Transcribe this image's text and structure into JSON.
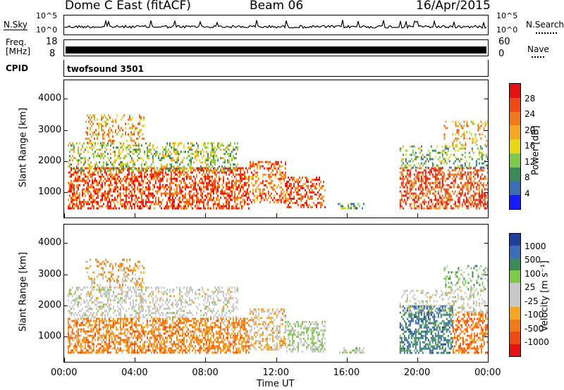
{
  "header": {
    "station": "Dome C East (fitACF)",
    "beam": "Beam 06",
    "date": "16/Apr/2015"
  },
  "strip_panels": {
    "nsky_label": "N.Sky",
    "nsearch_label": "N.Search",
    "noise_ticks": [
      "10^5",
      "10^0"
    ],
    "freq_label_line1": "Freq.",
    "freq_label_line2": "[MHz]",
    "freq_ticks": [
      "18",
      "8"
    ],
    "nave_label": "Nave",
    "nave_ticks": [
      "60",
      "0"
    ],
    "cpid_label": "CPID",
    "cpid_text": "twofsound 3501"
  },
  "colors": {
    "power_scale": [
      "#1a1aff",
      "#3b6db8",
      "#3a8a5a",
      "#7fc94a",
      "#e6d817",
      "#f5a623",
      "#f07a1a",
      "#ef4a14",
      "#e81010"
    ],
    "velocity_scale": [
      "#e81010",
      "#ef4a14",
      "#f07a1a",
      "#f5a623",
      "#c8c8c8",
      "#c8c8c8",
      "#7fc94a",
      "#3a8a5a",
      "#3b6db8",
      "#1f3f9a"
    ],
    "noise_trace": "#000000"
  },
  "chart_data": [
    {
      "type": "heatmap",
      "panel": "power",
      "ylabel": "Slant Range [km]",
      "xlabel": "",
      "x_ticks": [
        "00:00",
        "04:00",
        "08:00",
        "12:00",
        "16:00",
        "20:00",
        "00:00"
      ],
      "y_ticks": [
        "1000",
        "2000",
        "3000",
        "4000"
      ],
      "ylim": [
        180,
        4600
      ],
      "xlim_hours": [
        0,
        24
      ],
      "colorbar": {
        "label": "Power [dB]",
        "ticks": [
          "28",
          "24",
          "20",
          "16",
          "12",
          "8",
          "4"
        ],
        "range": [
          0,
          32
        ]
      },
      "echo_regions": [
        {
          "t0": 0.2,
          "t1": 10.5,
          "r0": 500,
          "r1": 1800,
          "value": 26,
          "fill": 0.55
        },
        {
          "t0": 0.2,
          "t1": 9.8,
          "r0": 1700,
          "r1": 2600,
          "value": 14,
          "fill": 0.35
        },
        {
          "t0": 1.2,
          "t1": 4.5,
          "r0": 2600,
          "r1": 3500,
          "value": 20,
          "fill": 0.3
        },
        {
          "t0": 10.5,
          "t1": 12.5,
          "r0": 700,
          "r1": 2000,
          "value": 24,
          "fill": 0.45
        },
        {
          "t0": 12.5,
          "t1": 14.8,
          "r0": 500,
          "r1": 1500,
          "value": 26,
          "fill": 0.45
        },
        {
          "t0": 15.5,
          "t1": 17.0,
          "r0": 450,
          "r1": 650,
          "value": 10,
          "fill": 0.4
        },
        {
          "t0": 19.0,
          "t1": 24.0,
          "r0": 500,
          "r1": 1800,
          "value": 26,
          "fill": 0.5
        },
        {
          "t0": 19.0,
          "t1": 24.0,
          "r0": 1800,
          "r1": 2500,
          "value": 12,
          "fill": 0.3
        },
        {
          "t0": 21.5,
          "t1": 24.0,
          "r0": 2500,
          "r1": 3300,
          "value": 20,
          "fill": 0.25
        }
      ]
    },
    {
      "type": "heatmap",
      "panel": "velocity",
      "ylabel": "Slant Range [km]",
      "xlabel": "Time UT",
      "x_ticks": [
        "00:00",
        "04:00",
        "08:00",
        "12:00",
        "16:00",
        "20:00",
        "00:00"
      ],
      "y_ticks": [
        "1000",
        "2000",
        "3000",
        "4000"
      ],
      "ylim": [
        180,
        4600
      ],
      "xlim_hours": [
        0,
        24
      ],
      "colorbar": {
        "label": "Velocity [m s⁻¹]",
        "ticks": [
          "1000",
          "500",
          "100",
          "25",
          "-25",
          "-100",
          "-500",
          "-1000"
        ]
      },
      "echo_regions": [
        {
          "t0": 0.2,
          "t1": 10.5,
          "r0": 500,
          "r1": 1600,
          "value": -400,
          "fill": 0.6
        },
        {
          "t0": 0.2,
          "t1": 9.8,
          "r0": 1600,
          "r1": 2600,
          "value": 0,
          "fill": 0.35
        },
        {
          "t0": 1.2,
          "t1": 4.5,
          "r0": 2600,
          "r1": 3500,
          "value": -300,
          "fill": 0.3
        },
        {
          "t0": 10.5,
          "t1": 12.5,
          "r0": 600,
          "r1": 1900,
          "value": -200,
          "fill": 0.45
        },
        {
          "t0": 12.5,
          "t1": 14.8,
          "r0": 500,
          "r1": 1500,
          "value": 150,
          "fill": 0.45
        },
        {
          "t0": 15.5,
          "t1": 17.0,
          "r0": 450,
          "r1": 650,
          "value": 200,
          "fill": 0.4
        },
        {
          "t0": 19.0,
          "t1": 22.0,
          "r0": 500,
          "r1": 2000,
          "value": 600,
          "fill": 0.55
        },
        {
          "t0": 22.0,
          "t1": 24.0,
          "r0": 500,
          "r1": 1800,
          "value": -500,
          "fill": 0.5
        },
        {
          "t0": 19.0,
          "t1": 24.0,
          "r0": 1800,
          "r1": 2500,
          "value": 0,
          "fill": 0.3
        },
        {
          "t0": 21.5,
          "t1": 24.0,
          "r0": 2500,
          "r1": 3300,
          "value": 300,
          "fill": 0.25
        }
      ]
    }
  ]
}
